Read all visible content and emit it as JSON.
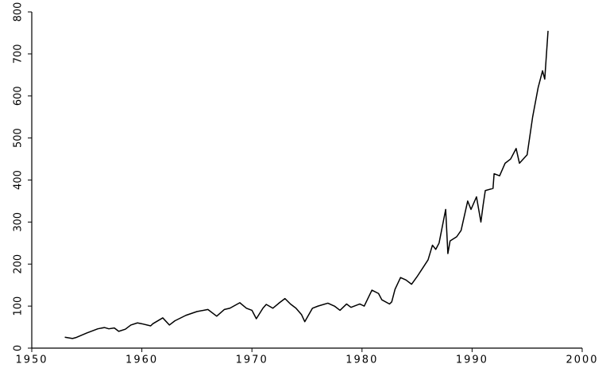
{
  "chart_data": {
    "type": "line",
    "x": [
      1953.0,
      1953.7,
      1954.0,
      1955.0,
      1956.0,
      1956.6,
      1957.0,
      1957.5,
      1957.9,
      1958.5,
      1959.0,
      1959.6,
      1960.0,
      1960.8,
      1961.0,
      1961.9,
      1962.5,
      1963.0,
      1964.0,
      1965.0,
      1966.0,
      1966.8,
      1967.5,
      1968.0,
      1968.9,
      1969.5,
      1970.0,
      1970.4,
      1971.0,
      1971.3,
      1971.9,
      1972.5,
      1973.0,
      1973.5,
      1974.0,
      1974.5,
      1974.8,
      1975.0,
      1975.5,
      1976.0,
      1976.9,
      1977.5,
      1978.0,
      1978.6,
      1979.0,
      1979.8,
      1980.2,
      1980.9,
      1981.5,
      1981.8,
      1982.5,
      1982.7,
      1983.0,
      1983.5,
      1984.0,
      1984.5,
      1985.0,
      1985.5,
      1986.0,
      1986.4,
      1986.7,
      1987.0,
      1987.6,
      1987.8,
      1988.0,
      1988.6,
      1989.0,
      1989.6,
      1989.9,
      1990.4,
      1990.8,
      1991.0,
      1991.2,
      1991.9,
      1992.0,
      1992.5,
      1993.0,
      1993.5,
      1994.0,
      1994.3,
      1995.0,
      1995.5,
      1996.0,
      1996.4,
      1996.6,
      1996.9
    ],
    "series": [
      {
        "color": "#000000",
        "values": [
          26,
          23,
          25,
          36,
          46,
          49,
          46,
          48,
          40,
          45,
          55,
          60,
          58,
          53,
          58,
          72,
          55,
          65,
          78,
          87,
          92,
          76,
          92,
          95,
          108,
          95,
          90,
          70,
          95,
          104,
          95,
          108,
          118,
          105,
          95,
          80,
          63,
          72,
          95,
          100,
          107,
          100,
          90,
          105,
          97,
          105,
          100,
          138,
          130,
          115,
          105,
          110,
          140,
          168,
          162,
          152,
          170,
          190,
          210,
          245,
          235,
          250,
          330,
          225,
          255,
          265,
          280,
          350,
          330,
          360,
          300,
          340,
          375,
          380,
          415,
          410,
          440,
          450,
          475,
          440,
          460,
          550,
          620,
          660,
          640,
          755
        ]
      }
    ],
    "xlim": [
      1950,
      2000
    ],
    "ylim": [
      0,
      800
    ],
    "xticks": [
      1950,
      1960,
      1970,
      1980,
      1990,
      2000
    ],
    "yticks": [
      0,
      100,
      200,
      300,
      400,
      500,
      600,
      700,
      800
    ],
    "grid": false
  }
}
